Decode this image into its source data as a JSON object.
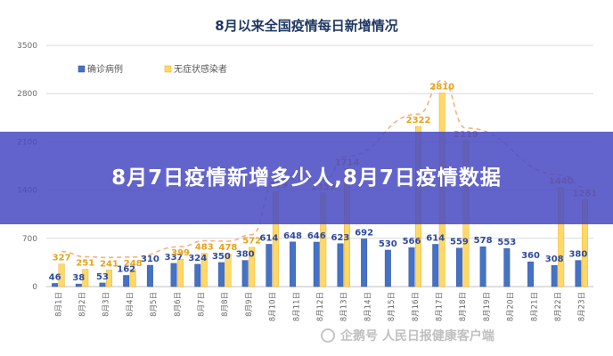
{
  "chart_data": {
    "type": "bar",
    "title": "8月以来全国疫情每日新增情况",
    "categories": [
      "8月1日",
      "8月2日",
      "8月3日",
      "8月4日",
      "8月5日",
      "8月6日",
      "8月7日",
      "8月8日",
      "8月9日",
      "8月10日",
      "8月11日",
      "8月12日",
      "8月13日",
      "8月14日",
      "8月15日",
      "8月16日",
      "8月17日",
      "8月18日",
      "8月19日",
      "8月20日",
      "8月21日",
      "8月22日",
      "8月23日"
    ],
    "series": [
      {
        "name": "确诊病例",
        "color": "#4472c4",
        "values": [
          46,
          38,
          53,
          162,
          310,
          337,
          324,
          350,
          380,
          614,
          648,
          646,
          623,
          692,
          530,
          566,
          614,
          559,
          578,
          553,
          360,
          308,
          380
        ]
      },
      {
        "name": "无症状感染者",
        "color": "#ffd966",
        "values": [
          327,
          251,
          241,
          248,
          null,
          399,
          483,
          478,
          572,
          1379,
          null,
          1359,
          1714,
          null,
          null,
          2322,
          2810,
          2119,
          null,
          null,
          null,
          1440,
          1261
        ]
      }
    ],
    "trendline": {
      "series": "无症状感染者",
      "style": "dashed",
      "color": "#f4b183"
    },
    "ylim": [
      0,
      3500
    ],
    "yticks": [
      0,
      700,
      1400,
      2100,
      2800,
      3500
    ],
    "grid": true,
    "legend": "top-left"
  },
  "banner": {
    "title": "8月7日疫情新增多少人,8月7日疫情数据"
  },
  "watermark": {
    "text": "企鹅号 人民日报健康客户端"
  }
}
